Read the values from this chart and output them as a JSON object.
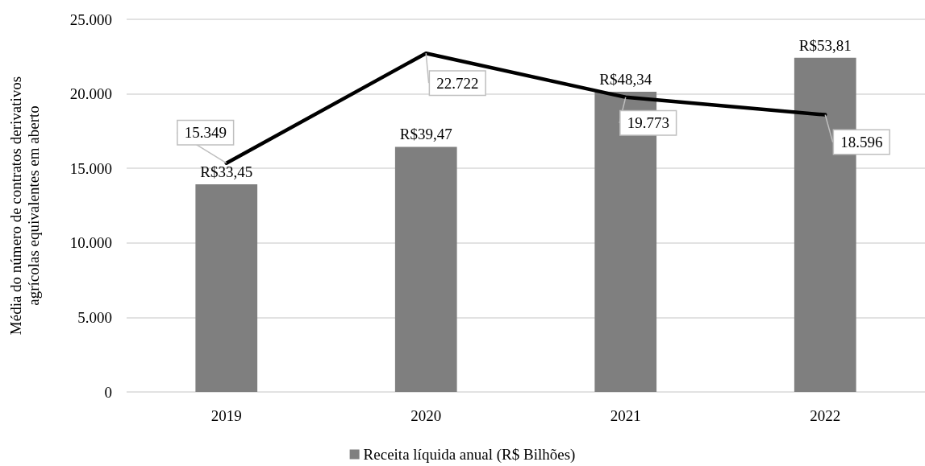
{
  "chart_data": {
    "type": "bar",
    "ylabel": "Média do número de contratos derivativos agrícolas equivalentes em aberto",
    "categories": [
      "2019",
      "2020",
      "2021",
      "2022"
    ],
    "series": [
      {
        "name": "Receita líquida anual (R$ Bilhões)",
        "axis": "y2",
        "color": "#7f7f7f",
        "values": [
          33.45,
          39.47,
          48.34,
          53.81
        ],
        "value_labels": [
          "R$33,45",
          "R$39,47",
          "R$48,34",
          "R$53,81"
        ]
      },
      {
        "type": "line",
        "color": "#000000",
        "values": [
          15349,
          22722,
          19773,
          18596
        ],
        "value_labels": [
          "15.349",
          "22.722",
          "19.773",
          "18.596"
        ]
      }
    ],
    "ylim": [
      0,
      25000
    ],
    "yticks": [
      0,
      {
        "value": 5000,
        "label": "5.000"
      },
      {
        "value": 10000,
        "label": "10.000"
      },
      {
        "value": 15000,
        "label": "15.000"
      },
      {
        "value": 20000,
        "label": "20.000"
      },
      {
        "value": 25000,
        "label": "25.000"
      }
    ],
    "y2lim": [
      0,
      60
    ],
    "grid": "y",
    "legend": "bottom",
    "marker": "none",
    "line_style": "solid"
  }
}
